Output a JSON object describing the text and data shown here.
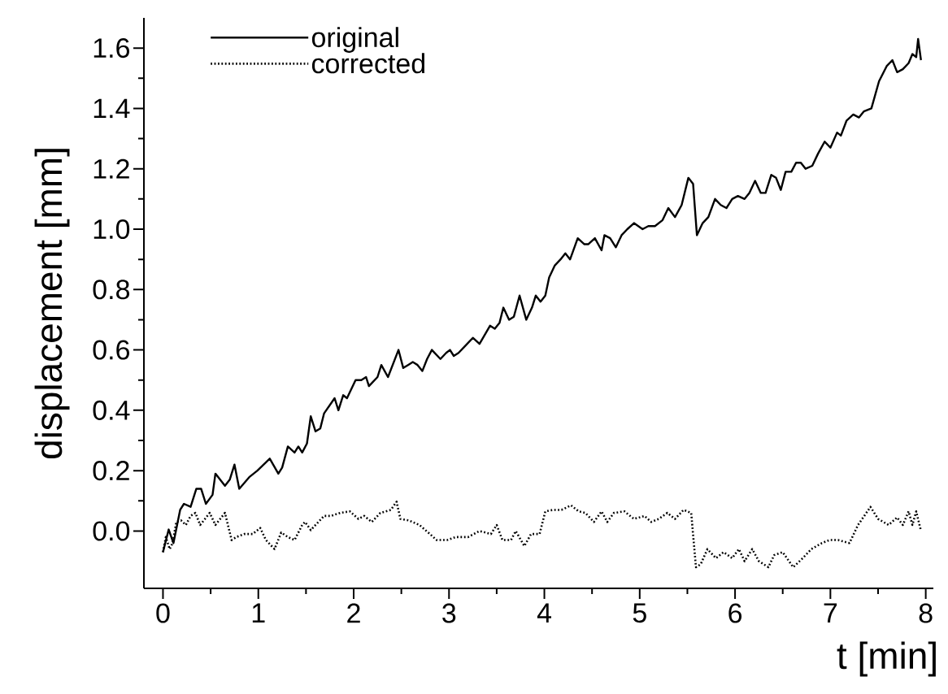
{
  "chart_data": {
    "type": "line",
    "xlabel": "t  [min]",
    "ylabel": "displacement [mm]",
    "xlim": [
      -0.2,
      8.08
    ],
    "ylim": [
      -0.19,
      1.7
    ],
    "xticks": [
      0,
      1,
      2,
      3,
      4,
      5,
      6,
      7,
      8
    ],
    "yticks": [
      {
        "value": 0,
        "label": "0.0"
      },
      {
        "value": 0.2,
        "label": "0.2"
      },
      {
        "value": 0.4,
        "label": "0.4"
      },
      {
        "value": 0.6,
        "label": "0.6"
      },
      {
        "value": 0.8,
        "label": "0.8"
      },
      {
        "value": 1.0,
        "label": "1.0"
      },
      {
        "value": 1.2,
        "label": "1.2"
      },
      {
        "value": 1.4,
        "label": "1.4"
      },
      {
        "value": 1.6,
        "label": "1.6"
      }
    ],
    "legend": "top left",
    "series": [
      {
        "name": "original",
        "color": "#000000",
        "line_style": "solid",
        "x": [
          0,
          0.06,
          0.11,
          0.18,
          0.22,
          0.29,
          0.35,
          0.4,
          0.45,
          0.52,
          0.55,
          0.65,
          0.7,
          0.75,
          0.8,
          0.91,
          0.99,
          1.12,
          1.21,
          1.25,
          1.31,
          1.38,
          1.42,
          1.46,
          1.51,
          1.55,
          1.6,
          1.65,
          1.69,
          1.8,
          1.84,
          1.89,
          1.93,
          2.02,
          2.08,
          2.13,
          2.16,
          2.25,
          2.29,
          2.36,
          2.47,
          2.52,
          2.57,
          2.62,
          2.67,
          2.72,
          2.77,
          2.82,
          2.91,
          2.97,
          3.01,
          3.05,
          3.1,
          3.16,
          3.25,
          3.32,
          3.43,
          3.48,
          3.53,
          3.57,
          3.63,
          3.68,
          3.74,
          3.81,
          3.87,
          3.91,
          3.96,
          4.01,
          4.05,
          4.11,
          4.17,
          4.22,
          4.27,
          4.35,
          4.42,
          4.46,
          4.53,
          4.6,
          4.63,
          4.69,
          4.75,
          4.81,
          4.87,
          4.94,
          5.03,
          5.09,
          5.16,
          5.24,
          5.3,
          5.37,
          5.44,
          5.51,
          5.56,
          5.6,
          5.66,
          5.72,
          5.79,
          5.85,
          5.91,
          5.97,
          6.03,
          6.1,
          6.15,
          6.21,
          6.27,
          6.32,
          6.38,
          6.43,
          6.48,
          6.53,
          6.59,
          6.64,
          6.69,
          6.74,
          6.81,
          6.87,
          6.94,
          7.0,
          7.07,
          7.11,
          7.17,
          7.24,
          7.3,
          7.35,
          7.43,
          7.51,
          7.59,
          7.65,
          7.7,
          7.76,
          7.82,
          7.86,
          7.9,
          7.92,
          7.95
        ],
        "values": [
          -0.07,
          0.005,
          -0.04,
          0.07,
          0.09,
          0.08,
          0.14,
          0.14,
          0.09,
          0.12,
          0.19,
          0.15,
          0.17,
          0.22,
          0.14,
          0.18,
          0.2,
          0.24,
          0.19,
          0.21,
          0.28,
          0.26,
          0.28,
          0.26,
          0.29,
          0.38,
          0.33,
          0.34,
          0.39,
          0.44,
          0.4,
          0.45,
          0.44,
          0.5,
          0.5,
          0.51,
          0.48,
          0.51,
          0.55,
          0.51,
          0.6,
          0.54,
          0.55,
          0.56,
          0.55,
          0.53,
          0.57,
          0.6,
          0.57,
          0.59,
          0.6,
          0.58,
          0.59,
          0.61,
          0.64,
          0.62,
          0.68,
          0.67,
          0.69,
          0.74,
          0.7,
          0.71,
          0.78,
          0.7,
          0.74,
          0.78,
          0.76,
          0.78,
          0.84,
          0.88,
          0.9,
          0.92,
          0.9,
          0.97,
          0.95,
          0.95,
          0.97,
          0.93,
          0.98,
          0.97,
          0.94,
          0.98,
          1.0,
          1.02,
          1.0,
          1.01,
          1.01,
          1.03,
          1.07,
          1.04,
          1.08,
          1.17,
          1.15,
          0.98,
          1.02,
          1.04,
          1.1,
          1.08,
          1.07,
          1.1,
          1.11,
          1.1,
          1.12,
          1.16,
          1.12,
          1.12,
          1.18,
          1.17,
          1.13,
          1.19,
          1.19,
          1.22,
          1.22,
          1.2,
          1.21,
          1.25,
          1.29,
          1.27,
          1.32,
          1.31,
          1.36,
          1.38,
          1.37,
          1.39,
          1.4,
          1.49,
          1.54,
          1.56,
          1.52,
          1.53,
          1.55,
          1.58,
          1.57,
          1.63,
          1.56
        ]
      },
      {
        "name": "corrected",
        "color": "#000000",
        "line_style": "dotted",
        "x": [
          0,
          0.03,
          0.07,
          0.1,
          0.14,
          0.19,
          0.24,
          0.29,
          0.34,
          0.39,
          0.44,
          0.49,
          0.55,
          0.6,
          0.65,
          0.72,
          0.77,
          0.85,
          0.94,
          1.02,
          1.08,
          1.17,
          1.24,
          1.31,
          1.38,
          1.46,
          1.49,
          1.55,
          1.6,
          1.69,
          1.76,
          1.86,
          1.96,
          2.05,
          2.11,
          2.19,
          2.28,
          2.39,
          2.45,
          2.49,
          2.58,
          2.69,
          2.8,
          2.87,
          2.98,
          3.07,
          3.2,
          3.32,
          3.44,
          3.5,
          3.56,
          3.65,
          3.7,
          3.79,
          3.86,
          3.95,
          4.01,
          4.09,
          4.18,
          4.28,
          4.36,
          4.43,
          4.52,
          4.6,
          4.66,
          4.73,
          4.84,
          4.94,
          5.05,
          5.12,
          5.2,
          5.29,
          5.37,
          5.46,
          5.54,
          5.59,
          5.64,
          5.71,
          5.8,
          5.88,
          5.97,
          6.04,
          6.1,
          6.18,
          6.25,
          6.35,
          6.41,
          6.5,
          6.61,
          6.71,
          6.8,
          6.91,
          6.99,
          7.08,
          7.2,
          7.29,
          7.42,
          7.5,
          7.61,
          7.7,
          7.76,
          7.82,
          7.86,
          7.9,
          7.95
        ],
        "values": [
          -0.07,
          -0.02,
          -0.06,
          -0.04,
          0.03,
          0.035,
          0.02,
          0.05,
          0.06,
          0.02,
          0.04,
          0.06,
          0.02,
          0.04,
          0.06,
          -0.03,
          -0.02,
          -0.01,
          -0.01,
          0.01,
          -0.03,
          -0.06,
          -0.005,
          -0.02,
          -0.03,
          0.02,
          0.03,
          0.003,
          0.02,
          0.05,
          0.05,
          0.06,
          0.065,
          0.04,
          0.05,
          0.03,
          0.06,
          0.07,
          0.097,
          0.04,
          0.035,
          0.02,
          -0.01,
          -0.03,
          -0.03,
          -0.02,
          -0.02,
          0.0,
          -0.01,
          0.02,
          -0.03,
          -0.03,
          0.0,
          -0.05,
          -0.01,
          -0.01,
          0.065,
          0.07,
          0.07,
          0.085,
          0.065,
          0.06,
          0.03,
          0.065,
          0.03,
          0.06,
          0.065,
          0.04,
          0.05,
          0.03,
          0.04,
          0.06,
          0.04,
          0.07,
          0.06,
          -0.12,
          -0.11,
          -0.06,
          -0.09,
          -0.07,
          -0.09,
          -0.06,
          -0.1,
          -0.06,
          -0.1,
          -0.12,
          -0.08,
          -0.07,
          -0.12,
          -0.09,
          -0.06,
          -0.04,
          -0.03,
          -0.03,
          -0.04,
          0.02,
          0.08,
          0.04,
          0.02,
          0.045,
          0.02,
          0.065,
          0.02,
          0.065,
          0.0
        ]
      }
    ]
  }
}
